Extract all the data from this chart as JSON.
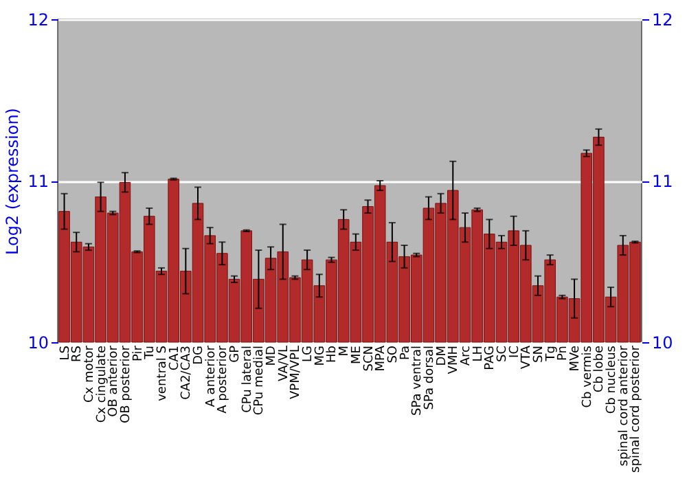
{
  "chart_data": {
    "type": "bar",
    "ylabel": "Log2 (expression)",
    "categories": [
      "LS",
      "RS",
      "Cx motor",
      "Cx cingulate",
      "OB anterior",
      "OB posterior",
      "Pir",
      "Tu",
      "ventral S",
      "CA1",
      "CA2/CA3",
      "DG",
      "A anterior",
      "A posterior",
      "GP",
      "CPu lateral",
      "CPu medial",
      "MD",
      "VA/VL",
      "VPM/VPL",
      "LG",
      "MG",
      "Hb",
      "M",
      "ME",
      "SCN",
      "MPA",
      "SO",
      "Pa",
      "SPa ventral",
      "SPa dorsal",
      "DM",
      "VMH",
      "Arc",
      "LH",
      "PAG",
      "SC",
      "IC",
      "VTA",
      "SN",
      "Tg",
      "Pn",
      "MVe",
      "Cb vermis",
      "Cb lobe",
      "Cb nucleus",
      "spinal cord anterior",
      "spinal cord posterior"
    ],
    "series": [
      {
        "color": "#b22a2a",
        "values": [
          10.81,
          10.62,
          10.59,
          10.9,
          10.8,
          10.99,
          10.56,
          10.78,
          10.44,
          11.01,
          10.44,
          10.86,
          10.66,
          10.55,
          10.39,
          10.69,
          10.39,
          10.52,
          10.56,
          10.4,
          10.51,
          10.35,
          10.51,
          10.76,
          10.62,
          10.84,
          10.97,
          10.62,
          10.53,
          10.54,
          10.83,
          10.86,
          10.94,
          10.71,
          10.82,
          10.67,
          10.62,
          10.69,
          10.6,
          10.35,
          10.51,
          10.28,
          10.27,
          11.17,
          11.27,
          10.28,
          10.6,
          10.62
        ],
        "errors": [
          0.11,
          0.06,
          0.02,
          0.09,
          0.01,
          0.06,
          0.005,
          0.05,
          0.02,
          0.005,
          0.14,
          0.1,
          0.05,
          0.07,
          0.02,
          0.005,
          0.18,
          0.07,
          0.17,
          0.01,
          0.06,
          0.07,
          0.015,
          0.06,
          0.05,
          0.04,
          0.03,
          0.12,
          0.07,
          0.01,
          0.07,
          0.06,
          0.18,
          0.09,
          0.01,
          0.09,
          0.04,
          0.09,
          0.09,
          0.06,
          0.03,
          0.01,
          0.12,
          0.02,
          0.05,
          0.06,
          0.06,
          0.005
        ]
      }
    ],
    "ylim": [
      10,
      12
    ],
    "yticks": [
      10,
      11,
      12
    ],
    "y2lim": [
      10,
      12
    ],
    "y2ticks": [
      10,
      11,
      12
    ],
    "grid": "y"
  }
}
